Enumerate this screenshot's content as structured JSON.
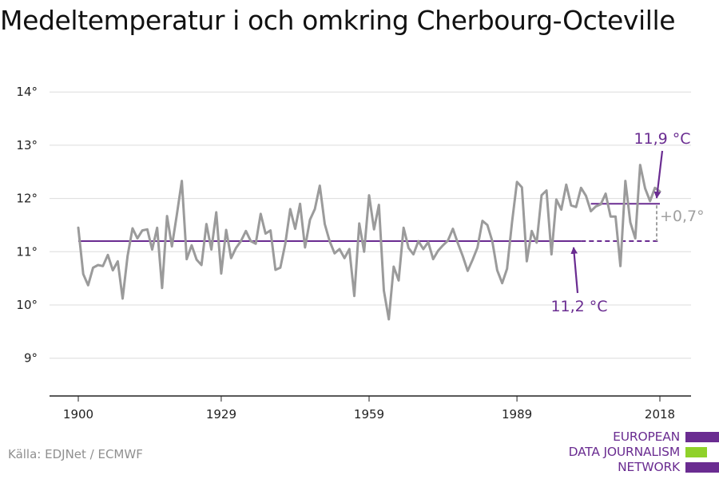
{
  "title": "Medeltemperatur i och omkring Cherbourg-Octeville",
  "source": "Källa: EDJNet / ECMWF",
  "logo": {
    "lines": [
      "EUROPEAN",
      "DATA JOURNALISM",
      "NETWORK"
    ],
    "colors": {
      "purple": "#6a2c91",
      "green": "#8fd12a"
    }
  },
  "colors": {
    "series": "#9b9b9b",
    "baseline": "#6a2c91",
    "annotation_purple": "#6a2c91",
    "annotation_gray": "#a0a0a0",
    "grid": "#dcdcdc",
    "axis": "#222222"
  },
  "chart_data": {
    "type": "line",
    "xlabel": "",
    "ylabel": "",
    "xlim": [
      1900,
      2018
    ],
    "ylim": [
      9,
      14
    ],
    "x_ticks": [
      1900,
      1929,
      1959,
      1989,
      2018
    ],
    "x_tick_labels": [
      "1900",
      "1929",
      "1959",
      "1989",
      "2018"
    ],
    "y_ticks": [
      9,
      10,
      11,
      12,
      13,
      14
    ],
    "y_tick_labels": [
      "9°",
      "10°",
      "11°",
      "12°",
      "13°",
      "14°"
    ],
    "grid": true,
    "series": [
      {
        "x": [
          1900,
          1901,
          1902,
          1903,
          1904,
          1905,
          1906,
          1907,
          1908,
          1909,
          1910,
          1911,
          1912,
          1913,
          1914,
          1915,
          1916,
          1917,
          1918,
          1919,
          1920,
          1921,
          1922,
          1923,
          1924,
          1925,
          1926,
          1927,
          1928,
          1929,
          1930,
          1931,
          1932,
          1933,
          1934,
          1935,
          1936,
          1937,
          1938,
          1939,
          1940,
          1941,
          1942,
          1943,
          1944,
          1945,
          1946,
          1947,
          1948,
          1949,
          1950,
          1951,
          1952,
          1953,
          1954,
          1955,
          1956,
          1957,
          1958,
          1959,
          1960,
          1961,
          1962,
          1963,
          1964,
          1965,
          1966,
          1967,
          1968,
          1969,
          1970,
          1971,
          1972,
          1973,
          1974,
          1975,
          1976,
          1977,
          1978,
          1979,
          1980,
          1981,
          1982,
          1983,
          1984,
          1985,
          1986,
          1987,
          1988,
          1989,
          1990,
          1991,
          1992,
          1993,
          1994,
          1995,
          1996,
          1997,
          1998,
          1999,
          2000,
          2001,
          2002,
          2003,
          2004,
          2005,
          2006,
          2007,
          2008,
          2009,
          2010,
          2011,
          2012,
          2013,
          2014,
          2015,
          2016,
          2017,
          2018
        ],
        "values": [
          11.45,
          10.58,
          10.37,
          10.7,
          10.75,
          10.73,
          10.94,
          10.65,
          10.82,
          10.12,
          10.92,
          11.44,
          11.25,
          11.4,
          11.42,
          11.04,
          11.45,
          10.32,
          11.67,
          11.1,
          11.7,
          12.33,
          10.86,
          11.12,
          10.85,
          10.75,
          11.52,
          11.04,
          11.74,
          10.59,
          11.41,
          10.88,
          11.07,
          11.2,
          11.39,
          11.2,
          11.15,
          11.71,
          11.34,
          11.4,
          10.66,
          10.7,
          11.15,
          11.8,
          11.43,
          11.9,
          11.08,
          11.6,
          11.8,
          12.24,
          11.52,
          11.2,
          10.97,
          11.05,
          10.88,
          11.05,
          10.17,
          11.53,
          11.0,
          12.06,
          11.42,
          11.88,
          10.27,
          9.73,
          10.72,
          10.46,
          11.45,
          11.07,
          10.95,
          11.2,
          11.05,
          11.18,
          10.86,
          11.02,
          11.12,
          11.21,
          11.43,
          11.16,
          10.92,
          10.64,
          10.85,
          11.08,
          11.58,
          11.5,
          11.2,
          10.65,
          10.41,
          10.68,
          11.55,
          12.31,
          12.21,
          10.82,
          11.39,
          11.17,
          12.06,
          12.15,
          10.95,
          11.98,
          11.79,
          12.26,
          11.87,
          11.84,
          12.2,
          12.05,
          11.76,
          11.85,
          11.89,
          12.09,
          11.66,
          11.66,
          10.73,
          12.33,
          11.55,
          11.25,
          12.63,
          12.19,
          11.95,
          12.2,
          12.13
        ]
      }
    ],
    "baseline": {
      "value": 11.2,
      "label": "11,2 °C",
      "from": 1900,
      "solid_to": 2002,
      "dashed_to": 2018
    },
    "recent": {
      "value": 11.9,
      "label": "11,9 °C",
      "from": 2004,
      "to": 2018
    },
    "difference_label": "+0,7°"
  }
}
